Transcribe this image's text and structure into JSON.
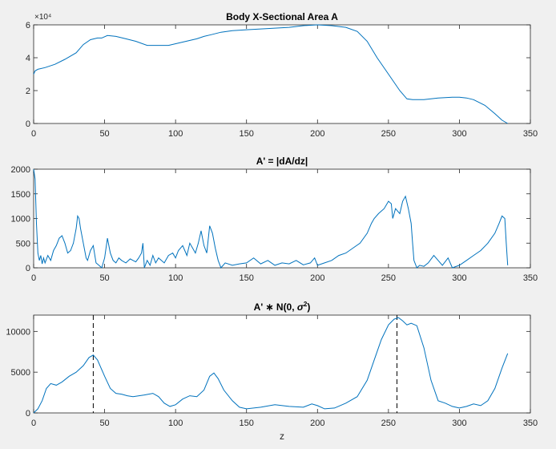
{
  "figure": {
    "background": "#f0f0f0",
    "line_color": "#0072bd"
  },
  "chart_data": [
    {
      "type": "line",
      "title": "Body X-Sectional Area A",
      "xlabel": "",
      "ylabel": "",
      "xlim": [
        0,
        350
      ],
      "ylim": [
        0,
        6
      ],
      "y_exponent_label": "×10⁴",
      "xticks": [
        "0",
        "50",
        "100",
        "150",
        "200",
        "250",
        "300",
        "350"
      ],
      "yticks": [
        "0",
        "2",
        "4",
        "6"
      ],
      "series": [
        {
          "values": [
            [
              0,
              3.0
            ],
            [
              1,
              3.2
            ],
            [
              3,
              3.3
            ],
            [
              8,
              3.4
            ],
            [
              15,
              3.6
            ],
            [
              22,
              3.9
            ],
            [
              30,
              4.3
            ],
            [
              35,
              4.8
            ],
            [
              40,
              5.1
            ],
            [
              45,
              5.2
            ],
            [
              48,
              5.2
            ],
            [
              52,
              5.35
            ],
            [
              58,
              5.3
            ],
            [
              65,
              5.15
            ],
            [
              72,
              5.0
            ],
            [
              80,
              4.75
            ],
            [
              95,
              4.75
            ],
            [
              105,
              4.95
            ],
            [
              115,
              5.15
            ],
            [
              120,
              5.3
            ],
            [
              125,
              5.4
            ],
            [
              132,
              5.55
            ],
            [
              140,
              5.65
            ],
            [
              150,
              5.7
            ],
            [
              160,
              5.75
            ],
            [
              170,
              5.8
            ],
            [
              180,
              5.85
            ],
            [
              190,
              5.95
            ],
            [
              200,
              6.0
            ],
            [
              210,
              5.95
            ],
            [
              220,
              5.85
            ],
            [
              228,
              5.6
            ],
            [
              235,
              5.0
            ],
            [
              242,
              4.0
            ],
            [
              250,
              3.0
            ],
            [
              258,
              2.0
            ],
            [
              263,
              1.5
            ],
            [
              267,
              1.45
            ],
            [
              275,
              1.45
            ],
            [
              285,
              1.55
            ],
            [
              295,
              1.6
            ],
            [
              300,
              1.6
            ],
            [
              305,
              1.55
            ],
            [
              310,
              1.45
            ],
            [
              318,
              1.1
            ],
            [
              325,
              0.6
            ],
            [
              330,
              0.2
            ],
            [
              334,
              0.0
            ]
          ]
        }
      ]
    },
    {
      "type": "line",
      "title": "A' = |dA/dz|",
      "xlabel": "",
      "ylabel": "",
      "xlim": [
        0,
        350
      ],
      "ylim": [
        0,
        2000
      ],
      "xticks": [
        "0",
        "50",
        "100",
        "150",
        "200",
        "250",
        "300",
        "350"
      ],
      "yticks": [
        "0",
        "500",
        "1000",
        "1500",
        "2000"
      ],
      "series": [
        {
          "values": [
            [
              0,
              2000
            ],
            [
              1,
              1800
            ],
            [
              2,
              900
            ],
            [
              3,
              300
            ],
            [
              4,
              150
            ],
            [
              5,
              250
            ],
            [
              6,
              80
            ],
            [
              7,
              200
            ],
            [
              8,
              100
            ],
            [
              10,
              250
            ],
            [
              12,
              150
            ],
            [
              14,
              350
            ],
            [
              16,
              450
            ],
            [
              18,
              600
            ],
            [
              20,
              650
            ],
            [
              22,
              500
            ],
            [
              24,
              300
            ],
            [
              26,
              350
            ],
            [
              28,
              500
            ],
            [
              30,
              800
            ],
            [
              31,
              1050
            ],
            [
              32,
              1000
            ],
            [
              33,
              800
            ],
            [
              35,
              500
            ],
            [
              37,
              200
            ],
            [
              38,
              150
            ],
            [
              40,
              350
            ],
            [
              42,
              450
            ],
            [
              44,
              100
            ],
            [
              46,
              50
            ],
            [
              48,
              0
            ],
            [
              50,
              200
            ],
            [
              52,
              600
            ],
            [
              54,
              300
            ],
            [
              56,
              150
            ],
            [
              58,
              100
            ],
            [
              60,
              200
            ],
            [
              62,
              150
            ],
            [
              65,
              100
            ],
            [
              68,
              180
            ],
            [
              70,
              150
            ],
            [
              72,
              120
            ],
            [
              74,
              200
            ],
            [
              76,
              300
            ],
            [
              77,
              500
            ],
            [
              78,
              0
            ],
            [
              80,
              150
            ],
            [
              82,
              50
            ],
            [
              84,
              250
            ],
            [
              86,
              100
            ],
            [
              88,
              200
            ],
            [
              90,
              150
            ],
            [
              92,
              100
            ],
            [
              95,
              250
            ],
            [
              98,
              300
            ],
            [
              100,
              200
            ],
            [
              102,
              350
            ],
            [
              105,
              450
            ],
            [
              108,
              250
            ],
            [
              110,
              500
            ],
            [
              112,
              400
            ],
            [
              114,
              300
            ],
            [
              116,
              500
            ],
            [
              118,
              750
            ],
            [
              120,
              450
            ],
            [
              122,
              300
            ],
            [
              124,
              850
            ],
            [
              126,
              700
            ],
            [
              128,
              400
            ],
            [
              130,
              150
            ],
            [
              132,
              0
            ],
            [
              135,
              100
            ],
            [
              140,
              50
            ],
            [
              145,
              80
            ],
            [
              150,
              100
            ],
            [
              155,
              200
            ],
            [
              160,
              80
            ],
            [
              165,
              150
            ],
            [
              170,
              50
            ],
            [
              175,
              100
            ],
            [
              180,
              80
            ],
            [
              185,
              150
            ],
            [
              190,
              60
            ],
            [
              195,
              100
            ],
            [
              198,
              200
            ],
            [
              200,
              50
            ],
            [
              205,
              100
            ],
            [
              210,
              150
            ],
            [
              215,
              250
            ],
            [
              220,
              300
            ],
            [
              225,
              400
            ],
            [
              230,
              500
            ],
            [
              235,
              700
            ],
            [
              238,
              900
            ],
            [
              240,
              1000
            ],
            [
              243,
              1100
            ],
            [
              245,
              1150
            ],
            [
              247,
              1200
            ],
            [
              250,
              1350
            ],
            [
              252,
              1300
            ],
            [
              253,
              1000
            ],
            [
              255,
              1200
            ],
            [
              258,
              1100
            ],
            [
              260,
              1350
            ],
            [
              262,
              1450
            ],
            [
              264,
              1200
            ],
            [
              266,
              900
            ],
            [
              267,
              500
            ],
            [
              268,
              150
            ],
            [
              270,
              0
            ],
            [
              272,
              50
            ],
            [
              275,
              30
            ],
            [
              278,
              100
            ],
            [
              282,
              250
            ],
            [
              285,
              150
            ],
            [
              288,
              50
            ],
            [
              292,
              200
            ],
            [
              295,
              0
            ],
            [
              300,
              50
            ],
            [
              305,
              150
            ],
            [
              310,
              250
            ],
            [
              315,
              350
            ],
            [
              320,
              500
            ],
            [
              325,
              700
            ],
            [
              328,
              900
            ],
            [
              330,
              1050
            ],
            [
              332,
              1000
            ],
            [
              333,
              500
            ],
            [
              334,
              50
            ]
          ]
        }
      ]
    },
    {
      "type": "line",
      "title": "A' ∗ N(0, σ2)",
      "xlabel": "z",
      "ylabel": "",
      "xlim": [
        0,
        350
      ],
      "ylim": [
        0,
        12000
      ],
      "xticks": [
        "0",
        "50",
        "100",
        "150",
        "200",
        "250",
        "300",
        "350"
      ],
      "yticks": [
        "0",
        "5000",
        "10000"
      ],
      "vlines": [
        42,
        256
      ],
      "series": [
        {
          "values": [
            [
              0,
              0
            ],
            [
              3,
              500
            ],
            [
              6,
              1500
            ],
            [
              9,
              3000
            ],
            [
              12,
              3600
            ],
            [
              16,
              3400
            ],
            [
              20,
              3800
            ],
            [
              25,
              4500
            ],
            [
              30,
              5000
            ],
            [
              35,
              5800
            ],
            [
              39,
              6800
            ],
            [
              42,
              7100
            ],
            [
              45,
              6500
            ],
            [
              50,
              4500
            ],
            [
              54,
              3000
            ],
            [
              58,
              2400
            ],
            [
              62,
              2300
            ],
            [
              66,
              2100
            ],
            [
              70,
              2000
            ],
            [
              78,
              2200
            ],
            [
              84,
              2400
            ],
            [
              88,
              2000
            ],
            [
              92,
              1200
            ],
            [
              96,
              800
            ],
            [
              100,
              1000
            ],
            [
              105,
              1700
            ],
            [
              110,
              2100
            ],
            [
              115,
              2000
            ],
            [
              120,
              2800
            ],
            [
              124,
              4500
            ],
            [
              127,
              4900
            ],
            [
              130,
              4200
            ],
            [
              134,
              2800
            ],
            [
              140,
              1500
            ],
            [
              145,
              700
            ],
            [
              150,
              500
            ],
            [
              160,
              700
            ],
            [
              170,
              1000
            ],
            [
              180,
              800
            ],
            [
              190,
              700
            ],
            [
              196,
              1100
            ],
            [
              200,
              900
            ],
            [
              205,
              500
            ],
            [
              212,
              600
            ],
            [
              220,
              1200
            ],
            [
              228,
              2000
            ],
            [
              235,
              4000
            ],
            [
              240,
              6500
            ],
            [
              245,
              9000
            ],
            [
              250,
              10800
            ],
            [
              254,
              11500
            ],
            [
              257,
              11700
            ],
            [
              260,
              11300
            ],
            [
              263,
              10800
            ],
            [
              266,
              11000
            ],
            [
              270,
              10700
            ],
            [
              275,
              8000
            ],
            [
              280,
              4000
            ],
            [
              285,
              1500
            ],
            [
              290,
              1200
            ],
            [
              295,
              800
            ],
            [
              300,
              600
            ],
            [
              305,
              800
            ],
            [
              310,
              1100
            ],
            [
              315,
              900
            ],
            [
              320,
              1500
            ],
            [
              325,
              3000
            ],
            [
              330,
              5500
            ],
            [
              334,
              7300
            ]
          ]
        }
      ]
    }
  ]
}
